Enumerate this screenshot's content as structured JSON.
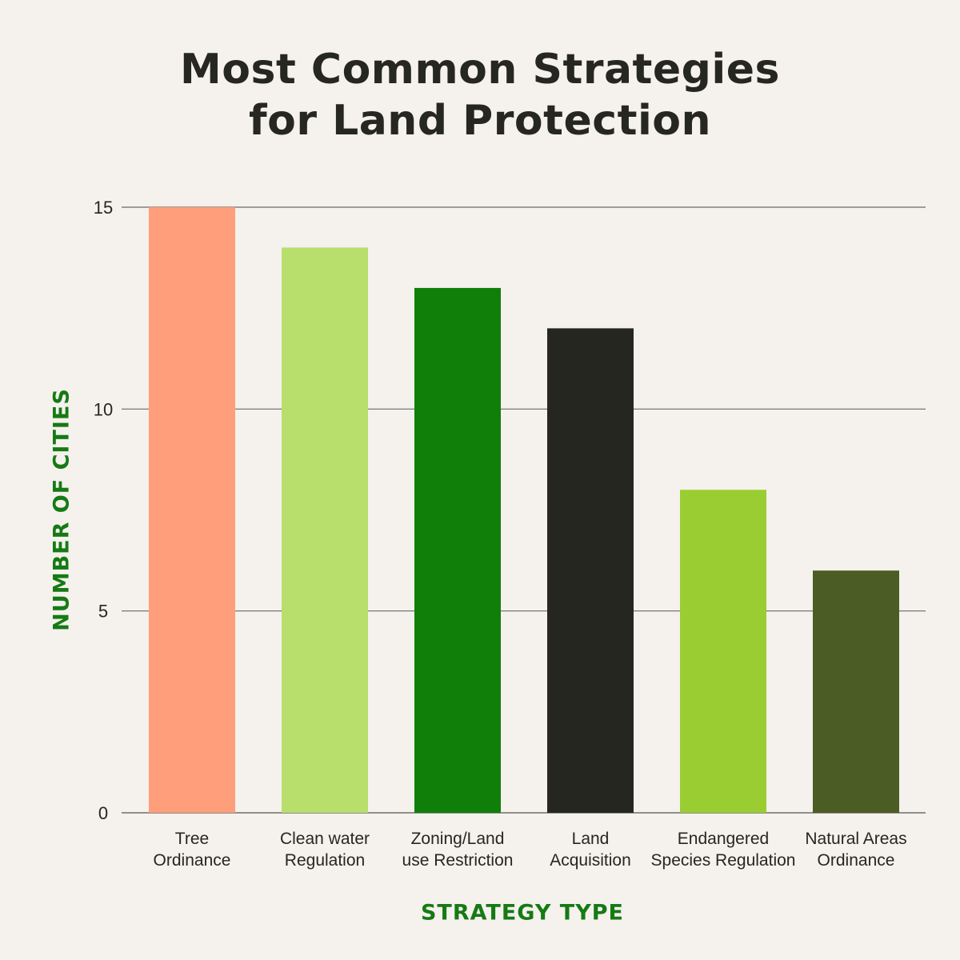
{
  "chart_data": {
    "type": "bar",
    "title_lines": [
      "Most Common Strategies",
      "for Land Protection"
    ],
    "xlabel": "STRATEGY TYPE",
    "ylabel": "NUMBER OF CITIES",
    "ylim": [
      0,
      15
    ],
    "yticks": [
      0,
      5,
      10,
      15
    ],
    "grid": true,
    "categories": [
      [
        "Tree",
        "Ordinance"
      ],
      [
        "Clean water",
        "Regulation"
      ],
      [
        "Zoning/Land",
        "use Restriction"
      ],
      [
        "Land",
        "Acquisition"
      ],
      [
        "Endangered",
        "Species Regulation"
      ],
      [
        "Natural Areas",
        "Ordinance"
      ]
    ],
    "values": [
      15,
      14,
      13,
      12,
      8,
      6
    ],
    "colors": [
      "#ff9e7a",
      "#b8de6b",
      "#107f0a",
      "#262621",
      "#9acd32",
      "#4b5d25"
    ]
  }
}
